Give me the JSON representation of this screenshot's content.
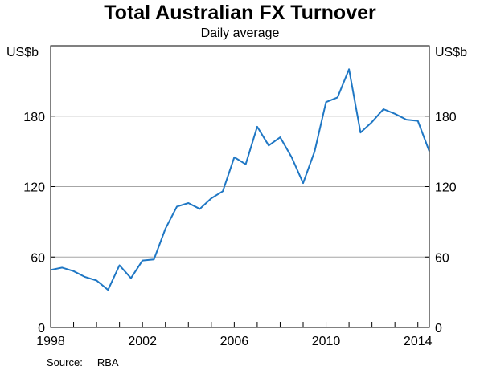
{
  "title": "Total Australian FX Turnover",
  "subtitle": "Daily average",
  "source_label": "Source:",
  "source_value": "RBA",
  "colors": {
    "line": "#1f77c4",
    "grid": "#a6a6a6",
    "frame": "#000000"
  },
  "chart_data": {
    "type": "line",
    "title": "Total Australian FX Turnover",
    "subtitle": "Daily average",
    "ylabel_left": "US$b",
    "ylabel_right": "US$b",
    "ylim": [
      0,
      240
    ],
    "xlim": [
      1998,
      2014.5
    ],
    "y_ticks": [
      0,
      60,
      120,
      180
    ],
    "x_ticks": [
      1998,
      2002,
      2006,
      2010,
      2014
    ],
    "x_tick_labels": [
      "1998",
      "2002",
      "2006",
      "2010",
      "2014"
    ],
    "grid": true,
    "series": [
      {
        "color": "#1f77c4",
        "x": [
          1998.0,
          1998.5,
          1999.0,
          1999.5,
          2000.0,
          2000.5,
          2001.0,
          2001.5,
          2002.0,
          2002.5,
          2003.0,
          2003.5,
          2004.0,
          2004.5,
          2005.0,
          2005.5,
          2006.0,
          2006.5,
          2007.0,
          2007.5,
          2008.0,
          2008.5,
          2009.0,
          2009.5,
          2010.0,
          2010.5,
          2011.0,
          2011.5,
          2012.0,
          2012.5,
          2013.0,
          2013.5,
          2014.0,
          2014.5
        ],
        "values": [
          49,
          51,
          48,
          43,
          40,
          32,
          53,
          42,
          57,
          58,
          84,
          103,
          106,
          101,
          110,
          116,
          145,
          139,
          171,
          155,
          162,
          145,
          123,
          150,
          192,
          196,
          220,
          166,
          175,
          186,
          182,
          177,
          176,
          150
        ]
      }
    ]
  }
}
